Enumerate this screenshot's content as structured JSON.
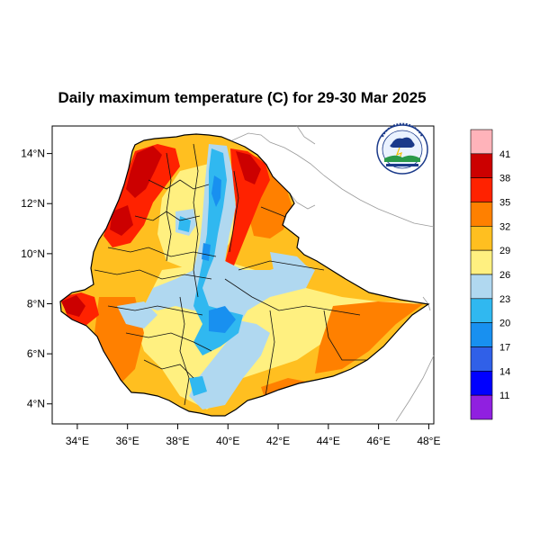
{
  "title": "Daily maximum temperature (C) for 29-30 Mar 2025",
  "x_axis": {
    "ticks": [
      "34°E",
      "36°E",
      "38°E",
      "40°E",
      "42°E",
      "44°E",
      "46°E",
      "48°E"
    ],
    "values": [
      34,
      36,
      38,
      40,
      42,
      44,
      46,
      48
    ],
    "range": [
      33,
      48.2
    ]
  },
  "y_axis": {
    "ticks": [
      "4°N",
      "6°N",
      "8°N",
      "10°N",
      "12°N",
      "14°N"
    ],
    "values": [
      4,
      6,
      8,
      10,
      12,
      14
    ],
    "range": [
      3.2,
      15.1
    ]
  },
  "colorbar": {
    "levels": [
      "41",
      "38",
      "35",
      "32",
      "29",
      "26",
      "23",
      "20",
      "17",
      "14",
      "11"
    ],
    "colors": [
      "#ffb3ba",
      "#cc0000",
      "#ff2200",
      "#ff8000",
      "#ffbf20",
      "#fff080",
      "#b0d8f0",
      "#30b8f0",
      "#1890f0",
      "#3060e8",
      "#0000ff",
      "#9020e0"
    ]
  },
  "logo": {
    "name": "ethiopian-meteorology-logo",
    "colors": [
      "#1b3a8a",
      "#2a9a4a"
    ]
  }
}
